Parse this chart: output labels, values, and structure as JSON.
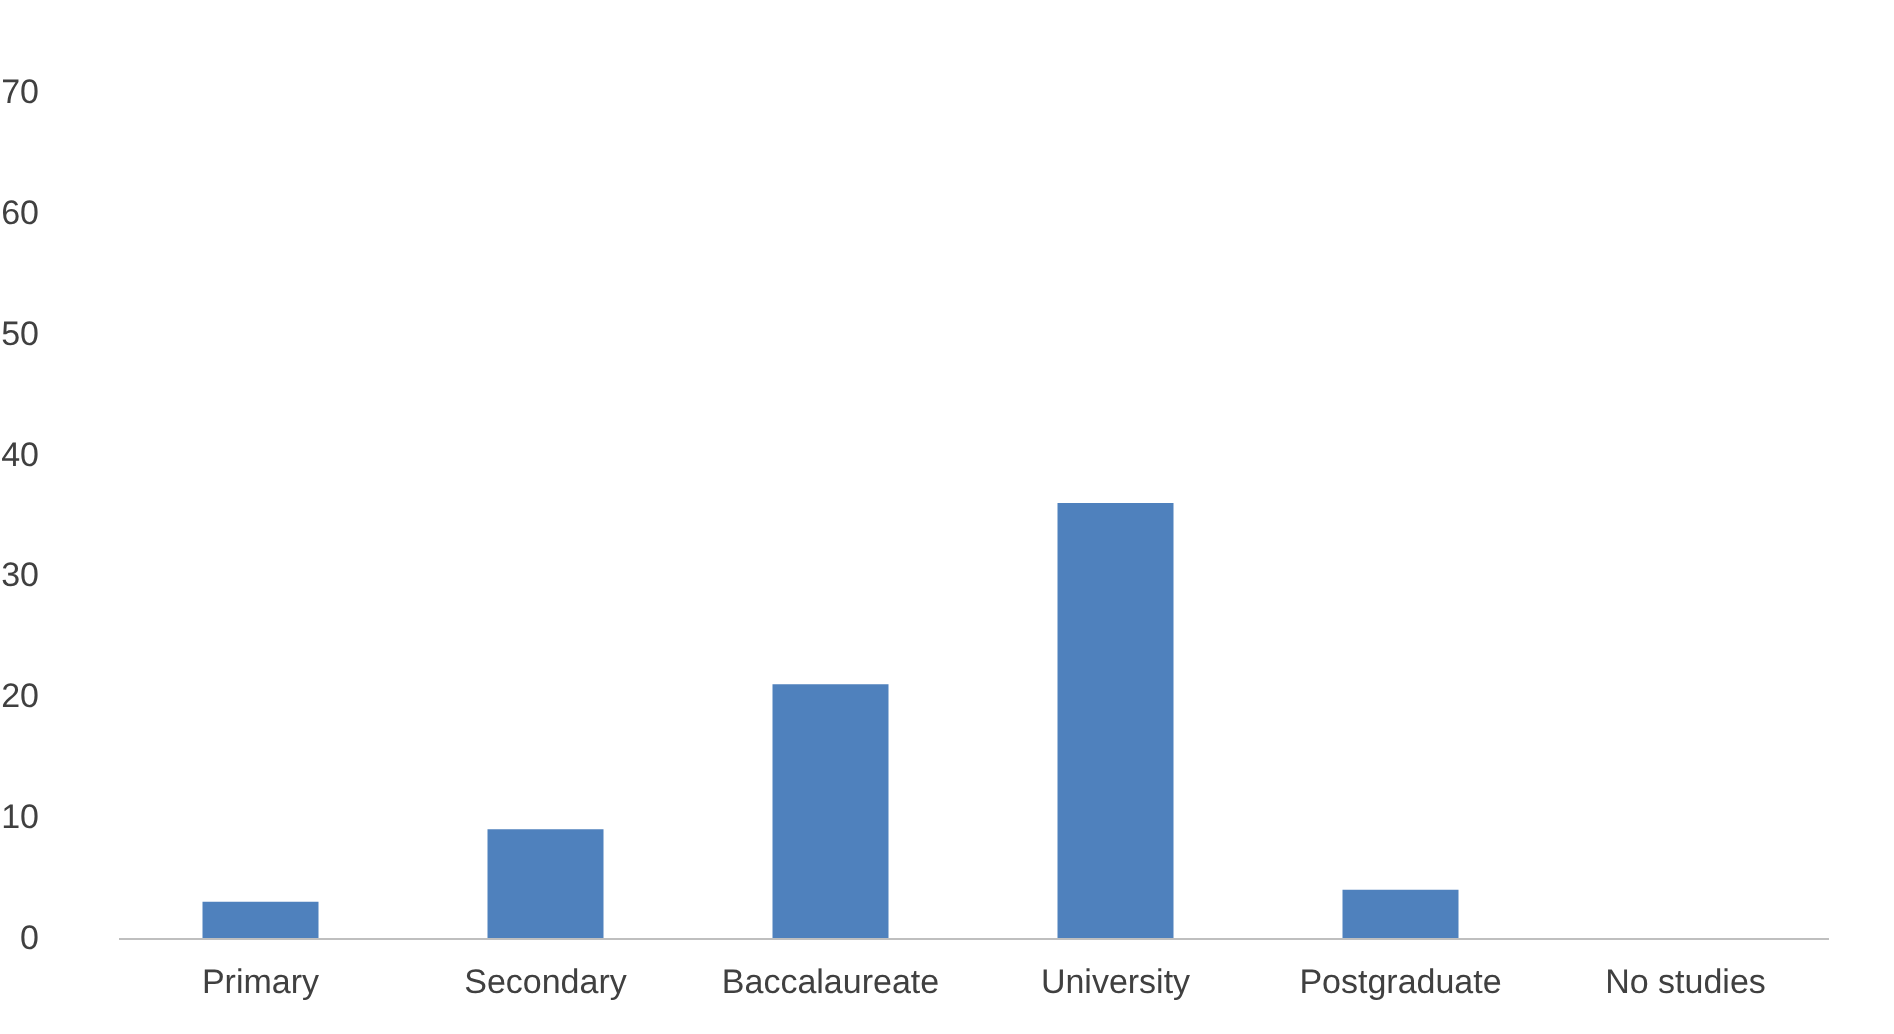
{
  "chart_data": {
    "type": "bar",
    "categories": [
      "Primary",
      "Secondary",
      "Baccalaureate",
      "University",
      "Postgraduate",
      "No studies"
    ],
    "values": [
      3,
      9,
      21,
      36,
      4,
      0
    ],
    "color": "#4f81bd",
    "ylim": [
      0,
      70
    ],
    "yticks": [
      0,
      10,
      20,
      30,
      40,
      50,
      60,
      70
    ],
    "grid": false
  }
}
